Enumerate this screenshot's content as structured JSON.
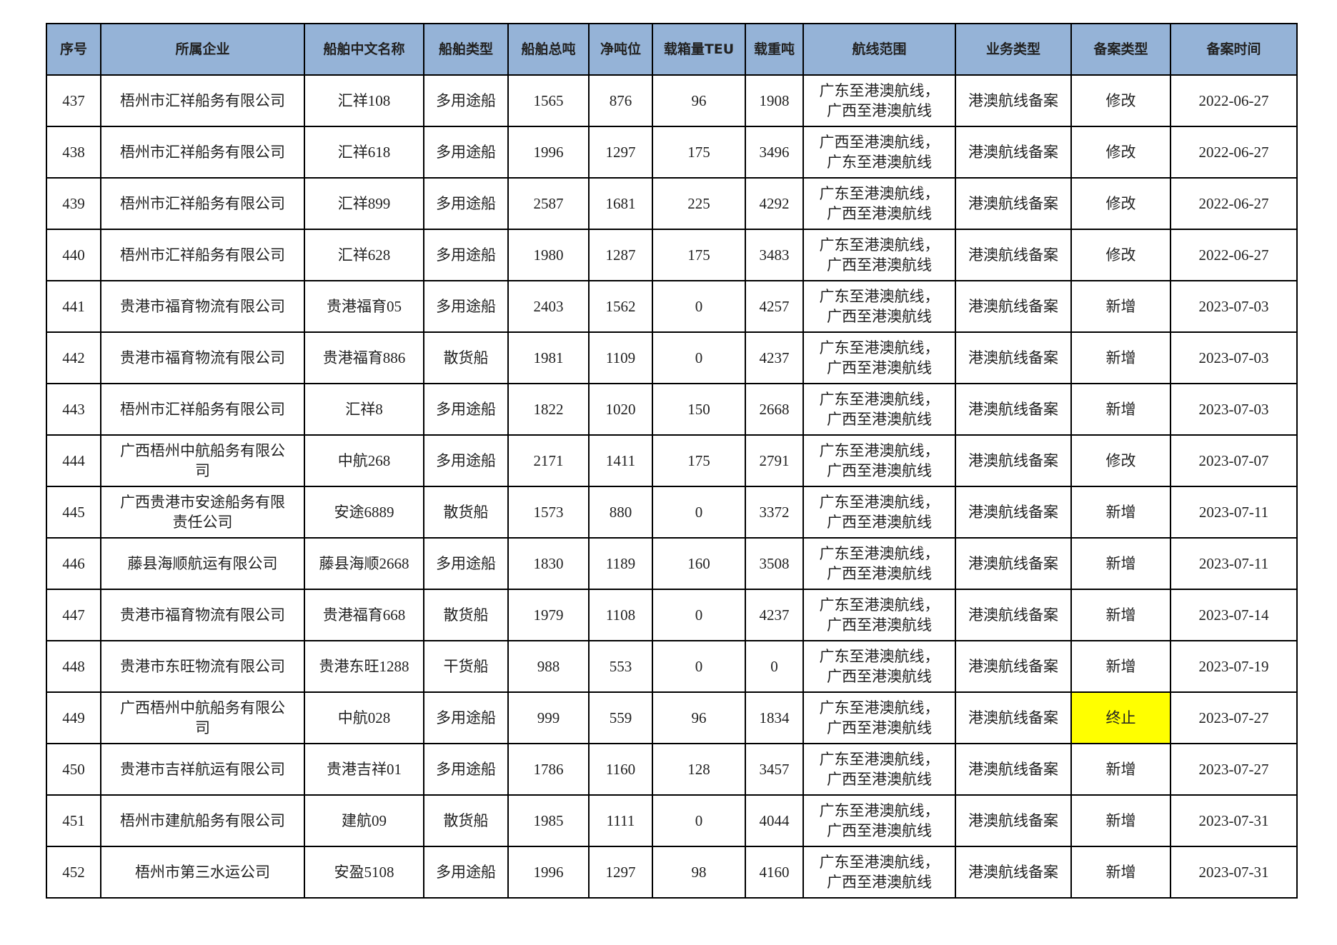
{
  "table": {
    "header": [
      "序号",
      "所属企业",
      "船舶中文名称",
      "船舶类型",
      "船舶总吨",
      "净吨位",
      "载箱量TEU",
      "载重吨",
      "航线范围",
      "业务类型",
      "备案类型",
      "备案时间"
    ],
    "rows": [
      [
        437,
        "梧州市汇祥船务有限公司",
        "汇祥108",
        "多用途船",
        1565,
        876,
        96,
        1908,
        "广东至港澳航线，广西至港澳航线",
        "港澳航线备案",
        "修改",
        "2022-06-27"
      ],
      [
        438,
        "梧州市汇祥船务有限公司",
        "汇祥618",
        "多用途船",
        1996,
        1297,
        175,
        3496,
        "广西至港澳航线，广东至港澳航线",
        "港澳航线备案",
        "修改",
        "2022-06-27"
      ],
      [
        439,
        "梧州市汇祥船务有限公司",
        "汇祥899",
        "多用途船",
        2587,
        1681,
        225,
        4292,
        "广东至港澳航线，广西至港澳航线",
        "港澳航线备案",
        "修改",
        "2022-06-27"
      ],
      [
        440,
        "梧州市汇祥船务有限公司",
        "汇祥628",
        "多用途船",
        1980,
        1287,
        175,
        3483,
        "广东至港澳航线，广西至港澳航线",
        "港澳航线备案",
        "修改",
        "2022-06-27"
      ],
      [
        441,
        "贵港市福育物流有限公司",
        "贵港福育05",
        "多用途船",
        2403,
        1562,
        0,
        4257,
        "广东至港澳航线，广西至港澳航线",
        "港澳航线备案",
        "新增",
        "2023-07-03"
      ],
      [
        442,
        "贵港市福育物流有限公司",
        "贵港福育886",
        "散货船",
        1981,
        1109,
        0,
        4237,
        "广东至港澳航线，广西至港澳航线",
        "港澳航线备案",
        "新增",
        "2023-07-03"
      ],
      [
        443,
        "梧州市汇祥船务有限公司",
        "汇祥8",
        "多用途船",
        1822,
        1020,
        150,
        2668,
        "广东至港澳航线，广西至港澳航线",
        "港澳航线备案",
        "新增",
        "2023-07-03"
      ],
      [
        444,
        "广西梧州中航船务有限公司",
        "中航268",
        "多用途船",
        2171,
        1411,
        175,
        2791,
        "广东至港澳航线，广西至港澳航线",
        "港澳航线备案",
        "修改",
        "2023-07-07"
      ],
      [
        445,
        "广西贵港市安途船务有限责任公司",
        "安途6889",
        "散货船",
        1573,
        880,
        0,
        3372,
        "广东至港澳航线，广西至港澳航线",
        "港澳航线备案",
        "新增",
        "2023-07-11"
      ],
      [
        446,
        "藤县海顺航运有限公司",
        "藤县海顺2668",
        "多用途船",
        1830,
        1189,
        160,
        3508,
        "广东至港澳航线，广西至港澳航线",
        "港澳航线备案",
        "新增",
        "2023-07-11"
      ],
      [
        447,
        "贵港市福育物流有限公司",
        "贵港福育668",
        "散货船",
        1979,
        1108,
        0,
        4237,
        "广东至港澳航线，广西至港澳航线",
        "港澳航线备案",
        "新增",
        "2023-07-14"
      ],
      [
        448,
        "贵港市东旺物流有限公司",
        "贵港东旺1288",
        "干货船",
        988,
        553,
        0,
        0,
        "广东至港澳航线，广西至港澳航线",
        "港澳航线备案",
        "新增",
        "2023-07-19"
      ],
      [
        449,
        "广西梧州中航船务有限公司",
        "中航028",
        "多用途船",
        999,
        559,
        96,
        1834,
        "广东至港澳航线，广西至港澳航线",
        "港澳航线备案",
        "终止",
        "2023-07-27"
      ],
      [
        450,
        "贵港市吉祥航运有限公司",
        "贵港吉祥01",
        "多用途船",
        1786,
        1160,
        128,
        3457,
        "广东至港澳航线，广西至港澳航线",
        "港澳航线备案",
        "新增",
        "2023-07-27"
      ],
      [
        451,
        "梧州市建航船务有限公司",
        "建航09",
        "散货船",
        1985,
        1111,
        0,
        4044,
        "广东至港澳航线，广西至港澳航线",
        "港澳航线备案",
        "新增",
        "2023-07-31"
      ],
      [
        452,
        "梧州市第三水运公司",
        "安盈5108",
        "多用途船",
        1996,
        1297,
        98,
        4160,
        "广东至港澳航线，广西至港澳航线",
        "港澳航线备案",
        "新增",
        "2023-07-31"
      ]
    ],
    "header_color": "#95b3d7",
    "highlighted_cells": [
      {
        "row": 12,
        "col": 10,
        "color": "#ffff00"
      }
    ]
  }
}
